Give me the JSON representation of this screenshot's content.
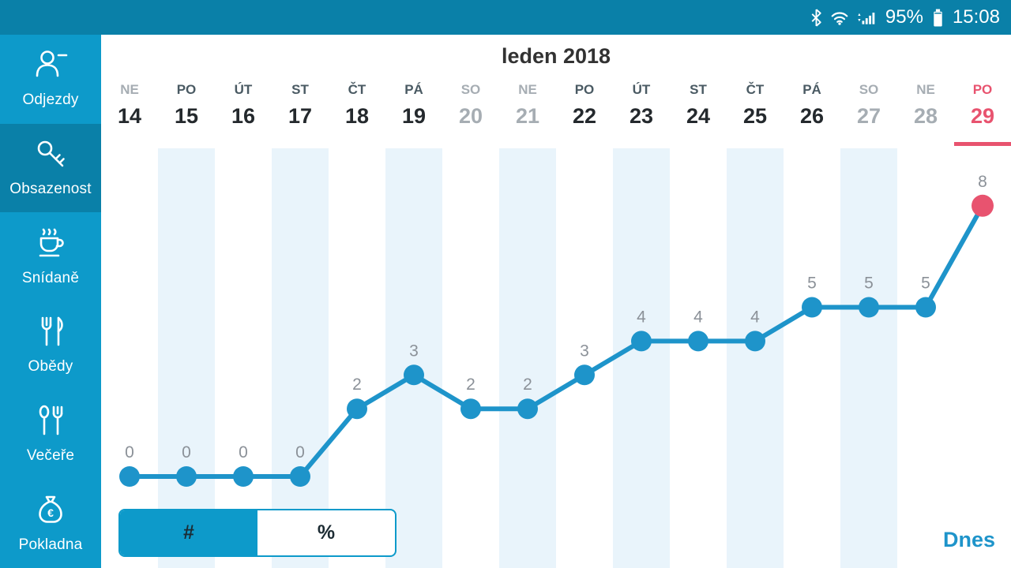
{
  "theme": {
    "primary": "#0d9aca",
    "primary_dark": "#0a80a8",
    "accent_red": "#e8536f",
    "chart_line": "#1e94ca",
    "band": "#e9f4fb"
  },
  "status_bar": {
    "battery_percent": "95%",
    "time": "15:08",
    "icons": [
      "bluetooth-icon",
      "wifi-icon",
      "signal-icon",
      "battery-icon"
    ]
  },
  "sidebar": {
    "items": [
      {
        "id": "odjezdy",
        "label": "Odjezdy",
        "icon": "person-minus-icon",
        "selected": false
      },
      {
        "id": "obsazenost",
        "label": "Obsazenost",
        "icon": "key-icon",
        "selected": true
      },
      {
        "id": "snidane",
        "label": "Snídaně",
        "icon": "coffee-icon",
        "selected": false
      },
      {
        "id": "obedy",
        "label": "Obědy",
        "icon": "cutlery-icon",
        "selected": false
      },
      {
        "id": "vecere",
        "label": "Večeře",
        "icon": "dinner-set-icon",
        "selected": false
      },
      {
        "id": "pokladna",
        "label": "Pokladna",
        "icon": "money-bag-icon",
        "selected": false
      }
    ]
  },
  "main": {
    "title": "leden 2018",
    "today_button_label": "Dnes",
    "unit_toggle": {
      "options": [
        "#",
        "%"
      ],
      "selected": "#"
    }
  },
  "chart_data": {
    "type": "line",
    "title": "leden 2018",
    "categories": [
      {
        "day": "NE",
        "date": "14",
        "muted_day": true,
        "muted_date": false,
        "band": false,
        "today": false
      },
      {
        "day": "PO",
        "date": "15",
        "muted_day": false,
        "muted_date": false,
        "band": true,
        "today": false
      },
      {
        "day": "ÚT",
        "date": "16",
        "muted_day": false,
        "muted_date": false,
        "band": false,
        "today": false
      },
      {
        "day": "ST",
        "date": "17",
        "muted_day": false,
        "muted_date": false,
        "band": true,
        "today": false
      },
      {
        "day": "ČT",
        "date": "18",
        "muted_day": false,
        "muted_date": false,
        "band": false,
        "today": false
      },
      {
        "day": "PÁ",
        "date": "19",
        "muted_day": false,
        "muted_date": false,
        "band": true,
        "today": false
      },
      {
        "day": "SO",
        "date": "20",
        "muted_day": true,
        "muted_date": true,
        "band": false,
        "today": false
      },
      {
        "day": "NE",
        "date": "21",
        "muted_day": true,
        "muted_date": true,
        "band": true,
        "today": false
      },
      {
        "day": "PO",
        "date": "22",
        "muted_day": false,
        "muted_date": false,
        "band": false,
        "today": false
      },
      {
        "day": "ÚT",
        "date": "23",
        "muted_day": false,
        "muted_date": false,
        "band": true,
        "today": false
      },
      {
        "day": "ST",
        "date": "24",
        "muted_day": false,
        "muted_date": false,
        "band": false,
        "today": false
      },
      {
        "day": "ČT",
        "date": "25",
        "muted_day": false,
        "muted_date": false,
        "band": true,
        "today": false
      },
      {
        "day": "PÁ",
        "date": "26",
        "muted_day": false,
        "muted_date": false,
        "band": false,
        "today": false
      },
      {
        "day": "SO",
        "date": "27",
        "muted_day": true,
        "muted_date": true,
        "band": true,
        "today": false
      },
      {
        "day": "NE",
        "date": "28",
        "muted_day": true,
        "muted_date": true,
        "band": false,
        "today": false
      },
      {
        "day": "PO",
        "date": "29",
        "muted_day": false,
        "muted_date": false,
        "band": false,
        "today": true
      }
    ],
    "values": [
      0,
      0,
      0,
      0,
      2,
      3,
      2,
      2,
      3,
      4,
      4,
      4,
      5,
      5,
      5,
      8
    ],
    "ylim": [
      0,
      10
    ],
    "grid": false,
    "legend": false,
    "today_index": 15,
    "colors": {
      "line": "#1e94ca",
      "point": "#1e94ca",
      "today_point": "#e8536f",
      "band": "#e9f4fb",
      "label": "#8b9198"
    }
  }
}
